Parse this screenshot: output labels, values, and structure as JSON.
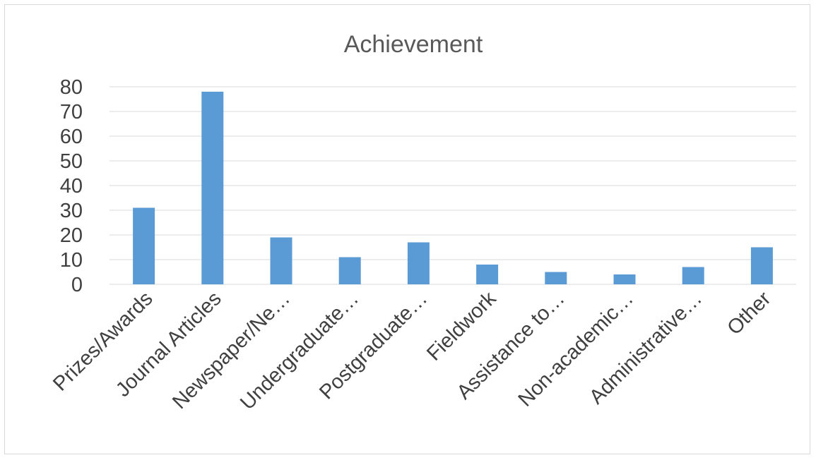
{
  "chart_data": {
    "type": "bar",
    "title": "Achievement",
    "xlabel": "",
    "ylabel": "",
    "categories": [
      "Prizes/Awards",
      "Journal Articles",
      "Newspaper/Ne…",
      "Undergraduate…",
      "Postgraduate…",
      "Fieldwork",
      "Assistance to…",
      "Non-academic…",
      "Administrative…",
      "Other"
    ],
    "values": [
      31,
      78,
      19,
      11,
      17,
      8,
      5,
      4,
      7,
      15
    ],
    "ylim": [
      0,
      80
    ],
    "yticks": [
      0,
      10,
      20,
      30,
      40,
      50,
      60,
      70,
      80
    ],
    "grid": true,
    "legend": "none",
    "bar_color": "#5b9bd5"
  }
}
